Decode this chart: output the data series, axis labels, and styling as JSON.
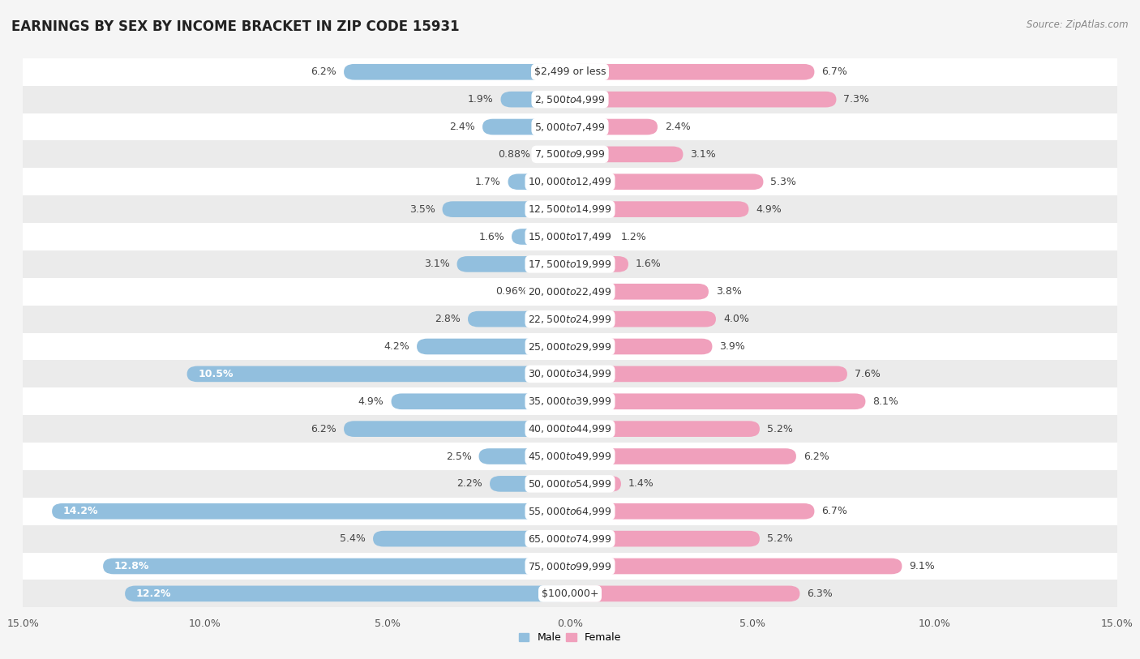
{
  "title": "EARNINGS BY SEX BY INCOME BRACKET IN ZIP CODE 15931",
  "source": "Source: ZipAtlas.com",
  "categories": [
    "$2,499 or less",
    "$2,500 to $4,999",
    "$5,000 to $7,499",
    "$7,500 to $9,999",
    "$10,000 to $12,499",
    "$12,500 to $14,999",
    "$15,000 to $17,499",
    "$17,500 to $19,999",
    "$20,000 to $22,499",
    "$22,500 to $24,999",
    "$25,000 to $29,999",
    "$30,000 to $34,999",
    "$35,000 to $39,999",
    "$40,000 to $44,999",
    "$45,000 to $49,999",
    "$50,000 to $54,999",
    "$55,000 to $64,999",
    "$65,000 to $74,999",
    "$75,000 to $99,999",
    "$100,000+"
  ],
  "male_values": [
    6.2,
    1.9,
    2.4,
    0.88,
    1.7,
    3.5,
    1.6,
    3.1,
    0.96,
    2.8,
    4.2,
    10.5,
    4.9,
    6.2,
    2.5,
    2.2,
    14.2,
    5.4,
    12.8,
    12.2
  ],
  "female_values": [
    6.7,
    7.3,
    2.4,
    3.1,
    5.3,
    4.9,
    1.2,
    1.6,
    3.8,
    4.0,
    3.9,
    7.6,
    8.1,
    5.2,
    6.2,
    1.4,
    6.7,
    5.2,
    9.1,
    6.3
  ],
  "male_color": "#92bfde",
  "female_color": "#f0a0bc",
  "bg_color": "#f5f5f5",
  "row_white": "#ffffff",
  "row_gray": "#ebebeb",
  "xlim": 15.0,
  "bar_height": 0.58,
  "title_fontsize": 12,
  "label_fontsize": 9,
  "category_fontsize": 9,
  "axis_fontsize": 9,
  "source_fontsize": 8.5
}
